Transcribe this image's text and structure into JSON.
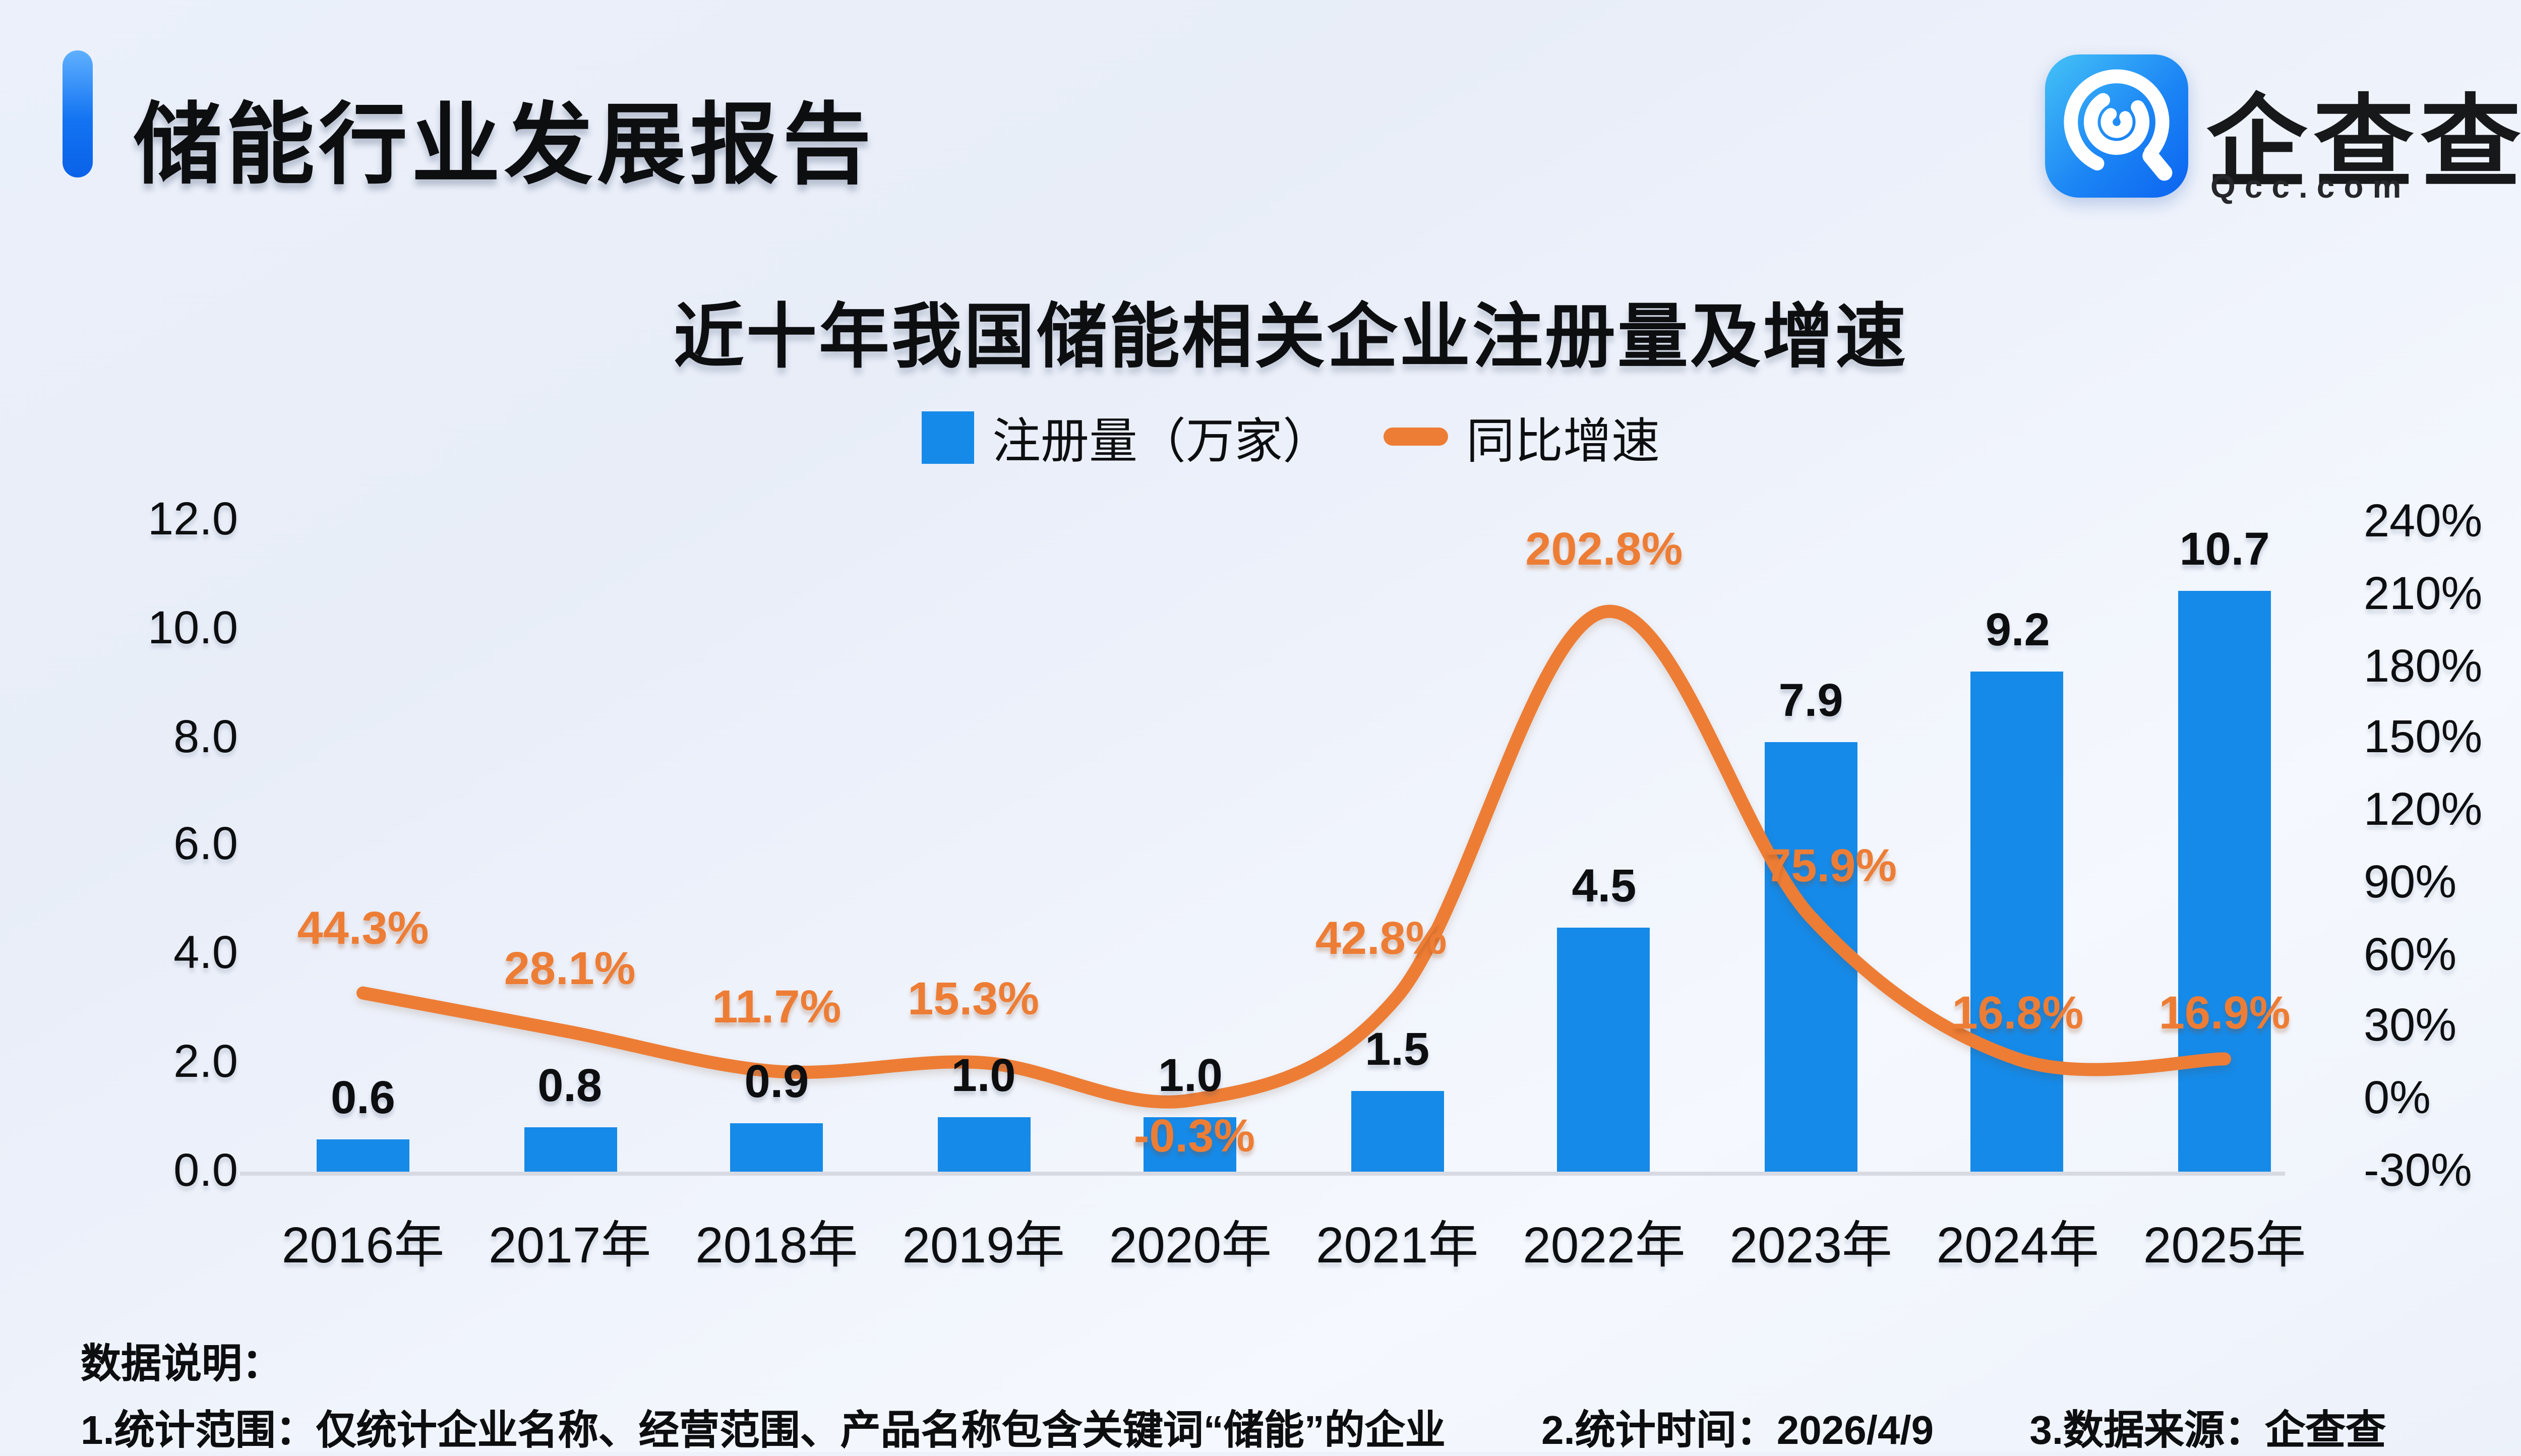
{
  "page": {
    "report_title": "储能行业发展报告"
  },
  "brand": {
    "name": "企查查",
    "domain": "Qcc.com"
  },
  "chart_data": {
    "type": "bar+line",
    "title": "近十年我国储能相关企业注册量及增速",
    "categories": [
      "2016年",
      "2017年",
      "2018年",
      "2019年",
      "2020年",
      "2021年",
      "2022年",
      "2023年",
      "2024年",
      "2025年"
    ],
    "series": [
      {
        "name": "注册量（万家）",
        "type": "bar",
        "color": "#168ae8",
        "values": [
          0.6,
          0.8,
          0.9,
          1.0,
          1.0,
          1.5,
          4.5,
          7.9,
          9.2,
          10.7
        ]
      },
      {
        "name": "同比增速",
        "type": "line",
        "color": "#ed7d35",
        "values_pct": [
          44.3,
          28.1,
          11.7,
          15.3,
          -0.3,
          42.8,
          202.8,
          75.9,
          16.8,
          16.9
        ],
        "labels": [
          "44.3%",
          "28.1%",
          "11.7%",
          "15.3%",
          "-0.3%",
          "42.8%",
          "202.8%",
          "75.9%",
          "16.8%",
          "16.9%"
        ]
      }
    ],
    "left_axis": {
      "ticks": [
        "12.0",
        "10.0",
        "8.0",
        "6.0",
        "4.0",
        "2.0",
        "0.0"
      ],
      "min": 0,
      "max": 12
    },
    "right_axis": {
      "ticks": [
        "240%",
        "210%",
        "180%",
        "150%",
        "120%",
        "90%",
        "60%",
        "30%",
        "0%",
        "-30%"
      ],
      "min": -30,
      "max": 240
    },
    "grid": false,
    "legend_position": "top"
  },
  "footer": {
    "heading": "数据说明：",
    "notes": [
      "1.统计范围：仅统计企业名称、经营范围、产品名称包含关键词“储能”的企业",
      "2.统计时间：2026/4/9",
      "3.数据来源：企查查"
    ]
  }
}
